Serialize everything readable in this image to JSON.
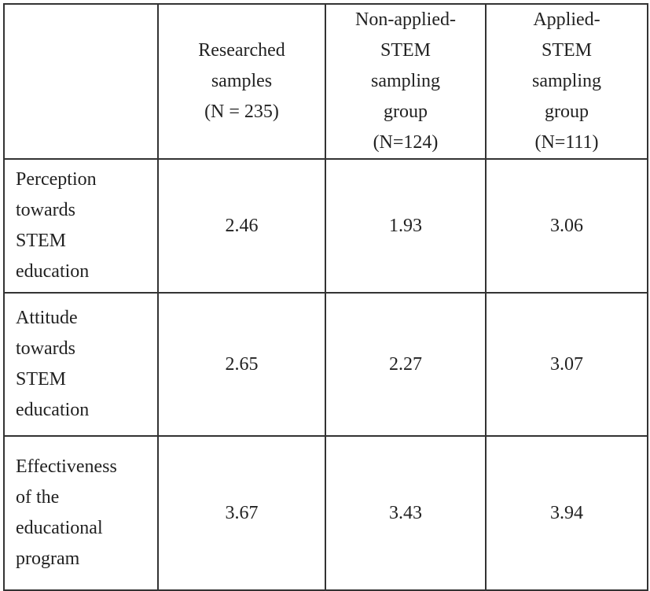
{
  "table": {
    "header": [
      "Researched\nsamples\n(N = 235)",
      "Non-applied-\nSTEM\nsampling\ngroup\n(N=124)",
      "Applied-\nSTEM\nsampling\ngroup\n(N=111)"
    ],
    "rows": [
      {
        "label": "Perception\ntowards\nSTEM\neducation",
        "values": [
          2.46,
          1.93,
          3.06
        ]
      },
      {
        "label": "Attitude\ntowards\nSTEM\neducation",
        "values": [
          2.65,
          2.27,
          3.07
        ]
      },
      {
        "label": "Effectiveness\nof the\neducational\nprogram",
        "values": [
          3.67,
          3.43,
          3.94
        ]
      }
    ]
  }
}
